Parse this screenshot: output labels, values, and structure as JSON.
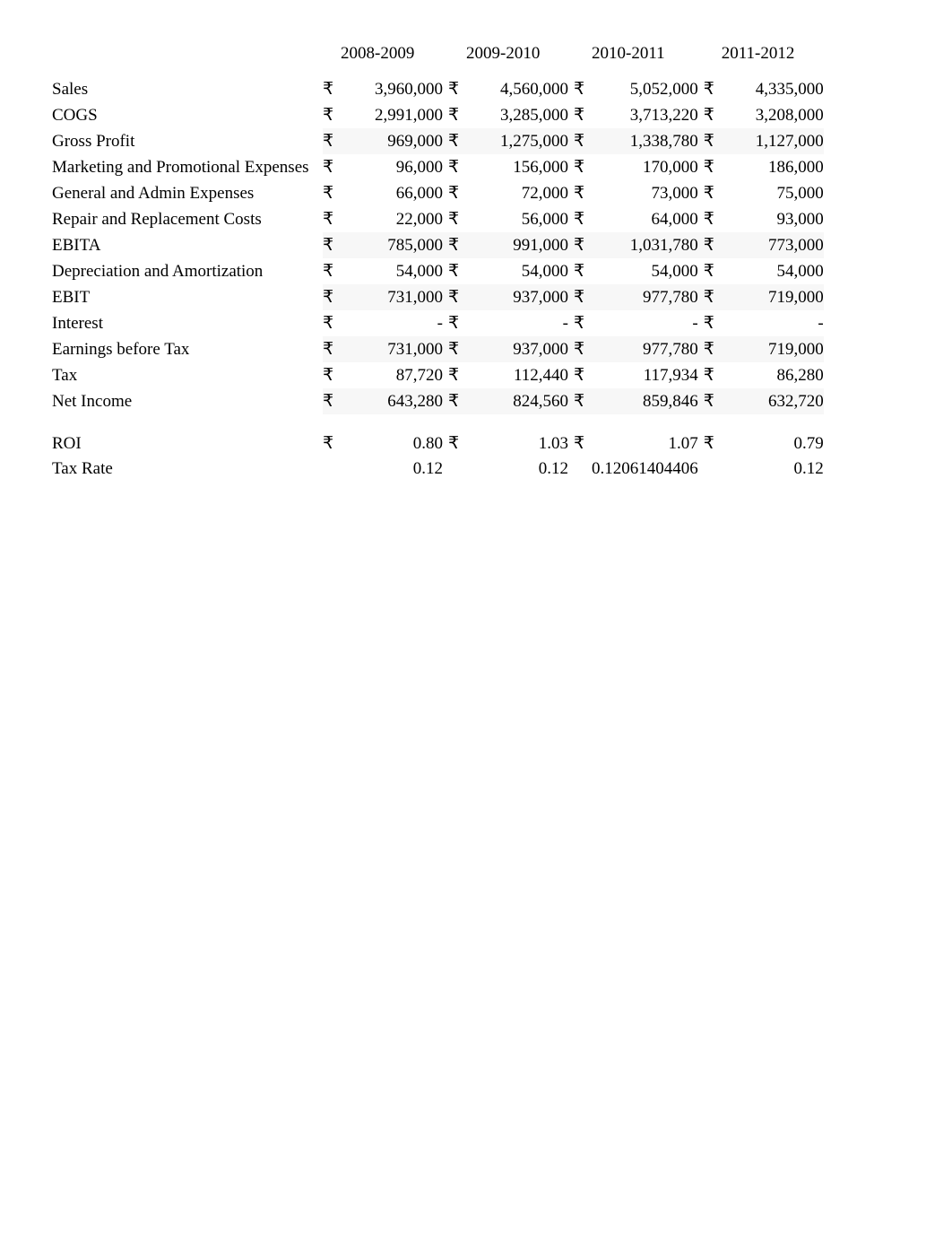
{
  "currency_symbol": "₹",
  "text_color": "#000000",
  "background_color": "#ffffff",
  "shade_color": "#f7f7f7",
  "font_size_pt": 14,
  "years": [
    "2008-2009",
    "2009-2010",
    "2010-2011",
    "2011-2012"
  ],
  "rows": [
    {
      "label": "Sales",
      "vals": [
        "3,960,000",
        "4,560,000",
        "5,052,000",
        "4,335,000"
      ],
      "shade": false
    },
    {
      "label": "COGS",
      "vals": [
        "2,991,000",
        "3,285,000",
        "3,713,220",
        "3,208,000"
      ],
      "shade": false
    },
    {
      "label": "Gross Profit",
      "vals": [
        "969,000",
        "1,275,000",
        "1,338,780",
        "1,127,000"
      ],
      "shade": true
    },
    {
      "label": "Marketing and Promotional Expenses",
      "vals": [
        "96,000",
        "156,000",
        "170,000",
        "186,000"
      ],
      "shade": false
    },
    {
      "label": "General and Admin Expenses",
      "vals": [
        "66,000",
        "72,000",
        "73,000",
        "75,000"
      ],
      "shade": false
    },
    {
      "label": "Repair and Replacement Costs",
      "vals": [
        "22,000",
        "56,000",
        "64,000",
        "93,000"
      ],
      "shade": false
    },
    {
      "label": "EBITA",
      "vals": [
        "785,000",
        "991,000",
        "1,031,780",
        "773,000"
      ],
      "shade": true
    },
    {
      "label": "Depreciation and Amortization",
      "vals": [
        "54,000",
        "54,000",
        "54,000",
        "54,000"
      ],
      "shade": false
    },
    {
      "label": "EBIT",
      "vals": [
        "731,000",
        "937,000",
        "977,780",
        "719,000"
      ],
      "shade": true
    },
    {
      "label": "Interest",
      "vals": [
        "-",
        "-",
        "-",
        "-"
      ],
      "shade": false
    },
    {
      "label": "Earnings before Tax",
      "vals": [
        "731,000",
        "937,000",
        "977,780",
        "719,000"
      ],
      "shade": true
    },
    {
      "label": "Tax",
      "vals": [
        "87,720",
        "112,440",
        "117,934",
        "86,280"
      ],
      "shade": false
    },
    {
      "label": "Net Income",
      "vals": [
        "643,280",
        "824,560",
        "859,846",
        "632,720"
      ],
      "shade": true
    }
  ],
  "footer": [
    {
      "label": "ROI",
      "vals": [
        "0.80",
        "1.03",
        "1.07",
        "0.79"
      ],
      "curr": true
    },
    {
      "label": "Tax Rate",
      "vals": [
        "0.12",
        "0.12",
        "0.12061404406",
        "0.12"
      ],
      "curr": false
    }
  ]
}
